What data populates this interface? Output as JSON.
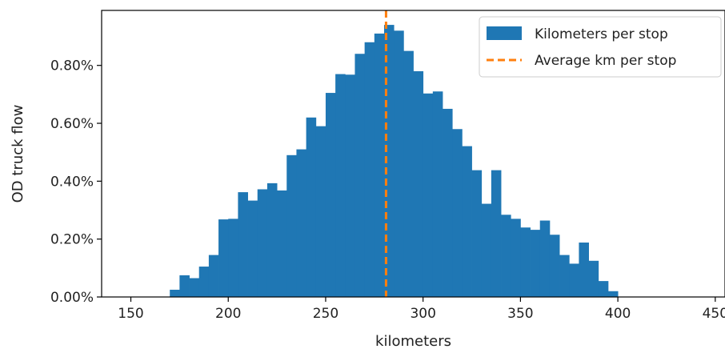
{
  "chart_data": {
    "type": "bar",
    "subtype": "histogram",
    "title": "",
    "xlabel": "kilometers",
    "ylabel": "OD truck flow",
    "xlim": [
      135,
      455
    ],
    "ylim": [
      0,
      0.0099
    ],
    "x_ticks": [
      150,
      200,
      250,
      300,
      350,
      400,
      450
    ],
    "x_tick_labels": [
      "150",
      "200",
      "250",
      "300",
      "350",
      "400",
      "450"
    ],
    "y_ticks": [
      0,
      0.002,
      0.004,
      0.006,
      0.008
    ],
    "y_tick_labels": [
      "0.00%",
      "0.20%",
      "0.40%",
      "0.60%",
      "0.80%"
    ],
    "grid": false,
    "legend_position": "top-right",
    "series": [
      {
        "name": "Kilometers per stop",
        "color": "#1f77b4",
        "bin_start": 170,
        "bin_width": 5,
        "values": [
          0.00025,
          0.00075,
          0.00065,
          0.00105,
          0.00145,
          0.00268,
          0.0027,
          0.00362,
          0.00333,
          0.00372,
          0.00393,
          0.00368,
          0.0049,
          0.0051,
          0.0062,
          0.0059,
          0.00705,
          0.0077,
          0.00768,
          0.0084,
          0.0088,
          0.0091,
          0.0094,
          0.0092,
          0.0085,
          0.0078,
          0.00703,
          0.0071,
          0.0065,
          0.0058,
          0.00521,
          0.00438,
          0.00322,
          0.00438,
          0.00284,
          0.0027,
          0.0024,
          0.00232,
          0.00264,
          0.00215,
          0.00145,
          0.00115,
          0.00188,
          0.00125,
          0.00055,
          0.0002
        ]
      }
    ],
    "reference_line": {
      "name": "Average km per stop",
      "x": 281,
      "color": "#ff7f0e",
      "style": "dashed"
    }
  }
}
